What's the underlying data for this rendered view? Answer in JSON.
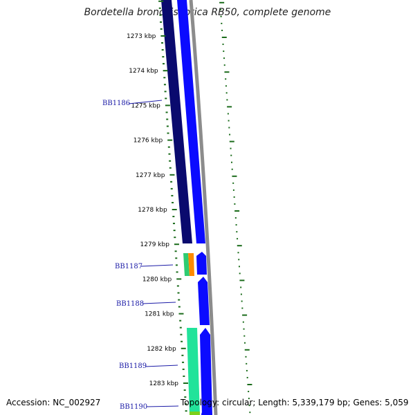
{
  "title": "Bordetella bronchiseptica RB50, complete genome",
  "ticks": [
    {
      "label": "1273 kbp",
      "pos": 1273
    },
    {
      "label": "1274 kbp",
      "pos": 1274
    },
    {
      "label": "1275 kbp",
      "pos": 1275
    },
    {
      "label": "1276 kbp",
      "pos": 1276
    },
    {
      "label": "1277 kbp",
      "pos": 1277
    },
    {
      "label": "1278 kbp",
      "pos": 1278
    },
    {
      "label": "1279 kbp",
      "pos": 1279
    },
    {
      "label": "1280 kbp",
      "pos": 1280
    },
    {
      "label": "1281 kbp",
      "pos": 1281
    },
    {
      "label": "1282 kbp",
      "pos": 1282
    },
    {
      "label": "1283 kbp",
      "pos": 1283
    }
  ],
  "genes": [
    {
      "label": "BB1186"
    },
    {
      "label": "BB1187"
    },
    {
      "label": "BB1188"
    },
    {
      "label": "BB1189"
    },
    {
      "label": "BB1190"
    }
  ],
  "colors": {
    "tick": "#1a6b1a",
    "gene_label": "#1a1aa6",
    "dark_navy": "#0a0a6e",
    "blue": "#0b0bff",
    "green": "#2ecc71",
    "orange": "#ff8a00",
    "light_green": "#21e39a",
    "lime": "#7ccf1a",
    "backbone": "#8c8c8c"
  },
  "footer": {
    "accession": "Accession: NC_002927",
    "summary": "Topology: circular; Length: 5,339,179 bp; Genes: 5,059"
  }
}
